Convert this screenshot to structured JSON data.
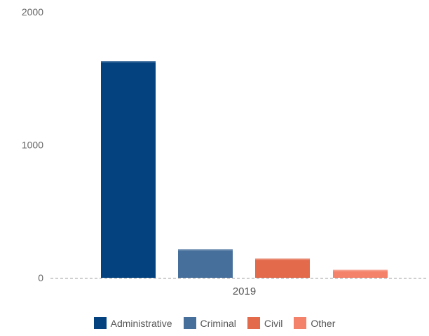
{
  "chart_data": {
    "type": "bar",
    "categories": [
      "2019"
    ],
    "series": [
      {
        "name": "Administrative",
        "values": [
          1630
        ],
        "color": "#03427f"
      },
      {
        "name": "Criminal",
        "values": [
          215
        ],
        "color": "#466f9c"
      },
      {
        "name": "Civil",
        "values": [
          145
        ],
        "color": "#e36a4b"
      },
      {
        "name": "Other",
        "values": [
          60
        ],
        "color": "#f4816a"
      }
    ],
    "y_ticks": [
      0,
      1000,
      2000
    ],
    "ylim": [
      0,
      2000
    ],
    "grid": false,
    "baseline": "dashed",
    "legend_position": "bottom",
    "title": "",
    "xlabel": "",
    "ylabel": ""
  }
}
